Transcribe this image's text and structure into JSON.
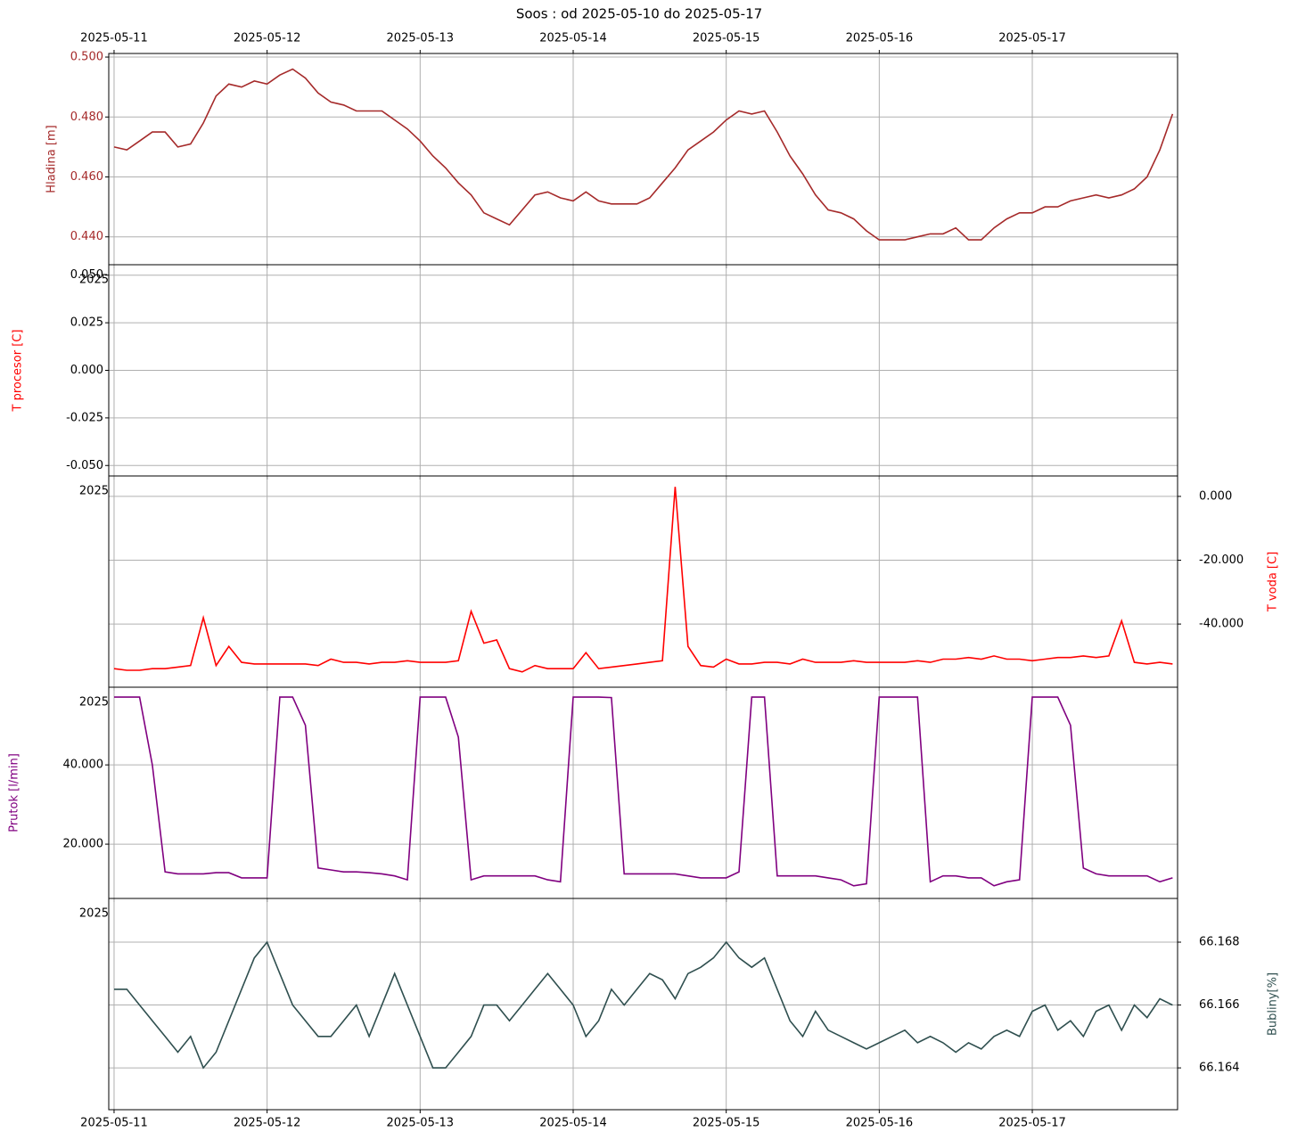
{
  "chart_data": {
    "type": "line",
    "title": "Soos : od 2025-05-10 do 2025-05-17",
    "x": [
      "2025-05-11T00:00",
      "2025-05-11T02:00",
      "2025-05-11T04:00",
      "2025-05-11T06:00",
      "2025-05-11T08:00",
      "2025-05-11T10:00",
      "2025-05-11T12:00",
      "2025-05-11T14:00",
      "2025-05-11T16:00",
      "2025-05-11T18:00",
      "2025-05-11T20:00",
      "2025-05-11T22:00",
      "2025-05-12T00:00",
      "2025-05-12T02:00",
      "2025-05-12T04:00",
      "2025-05-12T06:00",
      "2025-05-12T08:00",
      "2025-05-12T10:00",
      "2025-05-12T12:00",
      "2025-05-12T14:00",
      "2025-05-12T16:00",
      "2025-05-12T18:00",
      "2025-05-12T20:00",
      "2025-05-12T22:00",
      "2025-05-13T00:00",
      "2025-05-13T02:00",
      "2025-05-13T04:00",
      "2025-05-13T06:00",
      "2025-05-13T08:00",
      "2025-05-13T10:00",
      "2025-05-13T12:00",
      "2025-05-13T14:00",
      "2025-05-13T16:00",
      "2025-05-13T18:00",
      "2025-05-13T20:00",
      "2025-05-13T22:00",
      "2025-05-14T00:00",
      "2025-05-14T02:00",
      "2025-05-14T04:00",
      "2025-05-14T06:00",
      "2025-05-14T08:00",
      "2025-05-14T10:00",
      "2025-05-14T12:00",
      "2025-05-14T14:00",
      "2025-05-14T16:00",
      "2025-05-14T18:00",
      "2025-05-14T20:00",
      "2025-05-14T22:00",
      "2025-05-15T00:00",
      "2025-05-15T02:00",
      "2025-05-15T04:00",
      "2025-05-15T06:00",
      "2025-05-15T08:00",
      "2025-05-15T10:00",
      "2025-05-15T12:00",
      "2025-05-15T14:00",
      "2025-05-15T16:00",
      "2025-05-15T18:00",
      "2025-05-15T20:00",
      "2025-05-15T22:00",
      "2025-05-16T00:00",
      "2025-05-16T02:00",
      "2025-05-16T04:00",
      "2025-05-16T06:00",
      "2025-05-16T08:00",
      "2025-05-16T10:00",
      "2025-05-16T12:00",
      "2025-05-16T14:00",
      "2025-05-16T16:00",
      "2025-05-16T18:00",
      "2025-05-16T20:00",
      "2025-05-16T22:00",
      "2025-05-17T00:00",
      "2025-05-17T02:00",
      "2025-05-17T04:00",
      "2025-05-17T06:00",
      "2025-05-17T08:00",
      "2025-05-17T10:00",
      "2025-05-17T12:00",
      "2025-05-17T14:00",
      "2025-05-17T16:00",
      "2025-05-17T18:00",
      "2025-05-17T20:00",
      "2025-05-17T22:00"
    ],
    "xlim": [
      "2025-05-10T23:10",
      "2025-05-17T22:47"
    ],
    "xticks": [
      "2025-05-11",
      "2025-05-12",
      "2025-05-13",
      "2025-05-14",
      "2025-05-15",
      "2025-05-16",
      "2025-05-17"
    ],
    "grid": true,
    "panels": [
      {
        "y_label": "Hladina [m]",
        "axis": "left",
        "label_color": "#a52a2a",
        "tick_label_color": "#a52a2a",
        "ylim": [
          0.4307,
          0.5012
        ],
        "yticks": [
          {
            "value": 0.44,
            "label": "0.440"
          },
          {
            "value": 0.46,
            "label": "0.460"
          },
          {
            "value": 0.48,
            "label": "0.480"
          },
          {
            "value": 0.5,
            "label": "0.500"
          }
        ],
        "series": [
          {
            "color": "#a52a2a",
            "values": [
              0.47,
              0.469,
              0.472,
              0.475,
              0.475,
              0.47,
              0.471,
              0.478,
              0.487,
              0.491,
              0.49,
              0.492,
              0.491,
              0.494,
              0.496,
              0.493,
              0.488,
              0.485,
              0.484,
              0.482,
              0.482,
              0.482,
              0.479,
              0.476,
              0.472,
              0.467,
              0.463,
              0.458,
              0.454,
              0.448,
              0.446,
              0.444,
              0.449,
              0.454,
              0.455,
              0.453,
              0.452,
              0.455,
              0.452,
              0.451,
              0.451,
              0.451,
              0.453,
              0.458,
              0.463,
              0.469,
              0.472,
              0.475,
              0.479,
              0.482,
              0.481,
              0.482,
              0.475,
              0.467,
              0.461,
              0.454,
              0.449,
              0.448,
              0.446,
              0.442,
              0.439,
              0.439,
              0.439,
              0.44,
              0.441,
              0.441,
              0.443,
              0.439,
              0.439,
              0.443,
              0.446,
              0.448,
              0.448,
              0.45,
              0.45,
              0.452,
              0.453,
              0.454,
              0.453,
              0.454,
              0.456,
              0.46,
              0.469,
              0.481
            ]
          }
        ]
      },
      {
        "y_label": "T procesor [C]",
        "axis": "left",
        "label_color": "#ff0000",
        "offset_label": "2025",
        "ylim": [
          -0.0555,
          0.0555
        ],
        "yticks": [
          {
            "value": -0.05,
            "label": "-0.050"
          },
          {
            "value": -0.025,
            "label": "-0.025"
          },
          {
            "value": 0,
            "label": "0.000"
          },
          {
            "value": 0.025,
            "label": "0.025"
          },
          {
            "value": 0.05,
            "label": "0.050"
          }
        ],
        "series": []
      },
      {
        "y_label": "T voda [C]",
        "axis": "right",
        "label_color": "#ff0000",
        "offset_label": "2025",
        "ylim": [
          -59.8,
          6.4
        ],
        "yticks": [
          {
            "value": -40,
            "label": "-40.000"
          },
          {
            "value": -20,
            "label": "-20.000"
          },
          {
            "value": 0,
            "label": "0.000"
          }
        ],
        "series": [
          {
            "color": "#ff0000",
            "values": [
              -54,
              -54.5,
              -54.5,
              -54,
              -54,
              -53.5,
              -53,
              -38,
              -53,
              -47,
              -52,
              -52.5,
              -52.5,
              -52.5,
              -52.5,
              -52.5,
              -53,
              -51,
              -52,
              -52,
              -52.5,
              -52,
              -52,
              -51.5,
              -52,
              -52,
              -52,
              -51.5,
              -36,
              -46,
              -45,
              -54,
              -55,
              -53,
              -54,
              -54,
              -54,
              -49,
              -54,
              -53.5,
              -53,
              -52.5,
              -52,
              -51.5,
              3,
              -47,
              -53,
              -53.5,
              -51,
              -52.5,
              -52.5,
              -52,
              -52,
              -52.5,
              -51,
              -52,
              -52,
              -52,
              -51.5,
              -52,
              -52,
              -52,
              -52,
              -51.5,
              -52,
              -51,
              -51,
              -50.5,
              -51,
              -50,
              -51,
              -51,
              -51.5,
              -51,
              -50.5,
              -50.5,
              -50,
              -50.5,
              -50,
              -39,
              -52,
              -52.5,
              -52,
              -52.5
            ]
          }
        ]
      },
      {
        "y_label": "Prutok [l/min]",
        "axis": "left",
        "label_color": "#800080",
        "offset_label": "2025",
        "ylim": [
          6.3,
          59.6
        ],
        "yticks": [
          {
            "value": 20,
            "label": "20.000"
          },
          {
            "value": 40,
            "label": "40.000"
          }
        ],
        "series": [
          {
            "color": "#800080",
            "values": [
              57.1,
              57.1,
              57.1,
              40,
              13,
              12.5,
              12.5,
              12.5,
              12.8,
              12.8,
              11.5,
              11.5,
              11.5,
              57.1,
              57.1,
              50,
              14,
              13.5,
              13,
              13,
              12.8,
              12.5,
              12,
              11,
              57.1,
              57.1,
              57.1,
              47,
              11,
              12,
              12,
              12,
              12,
              12,
              11,
              10.5,
              57.1,
              57.1,
              57.1,
              57,
              12.5,
              12.5,
              12.5,
              12.5,
              12.5,
              12,
              11.5,
              11.5,
              11.5,
              13,
              57.1,
              57.1,
              12,
              12,
              12,
              12,
              11.5,
              11,
              9.5,
              10,
              57.1,
              57.1,
              57.1,
              57.1,
              10.5,
              12,
              12,
              11.5,
              11.5,
              9.5,
              10.5,
              11,
              57.1,
              57.1,
              57.1,
              50,
              14,
              12.5,
              12,
              12,
              12,
              12,
              10.5,
              11.5
            ]
          }
        ]
      },
      {
        "y_label": "Bubliny[%]",
        "axis": "right",
        "label_color": "#2f4f4f",
        "offset_label": "2025",
        "ylim": [
          66.16267,
          66.16939
        ],
        "yticks": [
          {
            "value": 66.164,
            "label": "66.164"
          },
          {
            "value": 66.166,
            "label": "66.166"
          },
          {
            "value": 66.168,
            "label": "66.168"
          }
        ],
        "series": [
          {
            "color": "#2f4f4f",
            "values": [
              66.1665,
              66.1665,
              66.166,
              66.1655,
              66.165,
              66.1645,
              66.165,
              66.164,
              66.1645,
              66.1655,
              66.1665,
              66.1675,
              66.168,
              66.167,
              66.166,
              66.1655,
              66.165,
              66.165,
              66.1655,
              66.166,
              66.165,
              66.166,
              66.167,
              66.166,
              66.165,
              66.164,
              66.164,
              66.1645,
              66.165,
              66.166,
              66.166,
              66.1655,
              66.166,
              66.1665,
              66.167,
              66.1665,
              66.166,
              66.165,
              66.1655,
              66.1665,
              66.166,
              66.1665,
              66.167,
              66.1668,
              66.1662,
              66.167,
              66.1672,
              66.1675,
              66.168,
              66.1675,
              66.1672,
              66.1675,
              66.1665,
              66.1655,
              66.165,
              66.1658,
              66.1652,
              66.165,
              66.1648,
              66.1646,
              66.1648,
              66.165,
              66.1652,
              66.1648,
              66.165,
              66.1648,
              66.1645,
              66.1648,
              66.1646,
              66.165,
              66.1652,
              66.165,
              66.1658,
              66.166,
              66.1652,
              66.1655,
              66.165,
              66.1658,
              66.166,
              66.1652,
              66.166,
              66.1656,
              66.1662,
              66.166
            ]
          }
        ]
      }
    ]
  }
}
